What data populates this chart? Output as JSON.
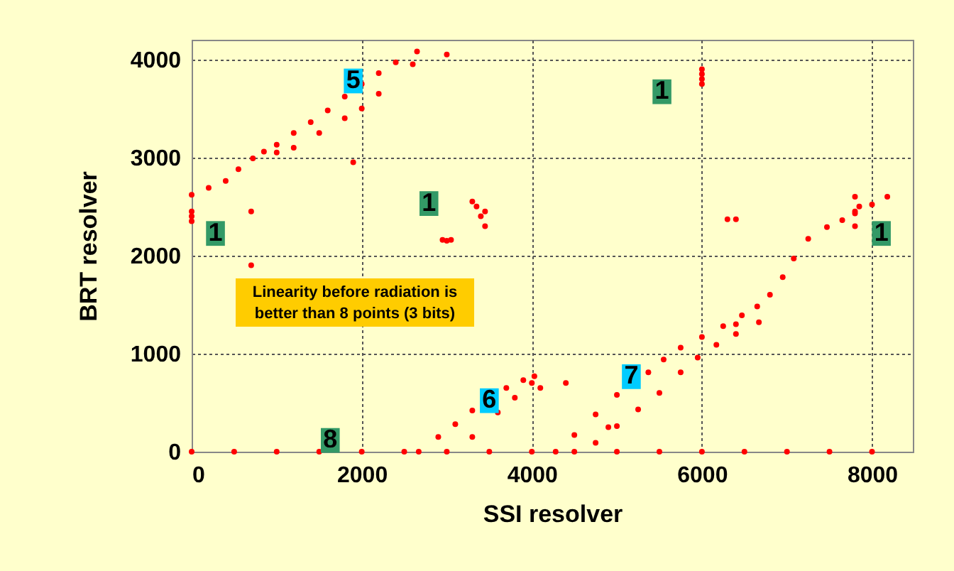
{
  "chart_data": {
    "type": "scatter",
    "xlabel": "SSI  resolver",
    "ylabel": "BRT resolver",
    "xlim": [
      0,
      8480
    ],
    "ylim": [
      0,
      4200
    ],
    "xticks": [
      0,
      {
        "value": 2000,
        "label": "2000"
      },
      {
        "value": 4000,
        "label": "4000"
      },
      {
        "value": 6000,
        "label": "6000"
      },
      {
        "value": 8000,
        "label": "8000"
      }
    ],
    "yticks": [
      0,
      {
        "value": 1000,
        "label": "1000"
      },
      {
        "value": 2000,
        "label": "2000"
      },
      {
        "value": 3000,
        "label": "3000"
      },
      {
        "value": 4000,
        "label": "4000"
      }
    ],
    "grid": true,
    "marker": "circle",
    "series": [
      {
        "color": "#ff0000",
        "x": [
          0,
          200,
          400,
          550,
          720,
          850,
          1000,
          1200,
          1400,
          1600,
          1800,
          2000,
          2200,
          2400,
          2650,
          0,
          0,
          0,
          700,
          1000,
          1200,
          1500,
          1800,
          2000,
          2200,
          2600,
          3000,
          700,
          1900,
          2950,
          3000,
          3050,
          3300,
          3350,
          3400,
          3450,
          3450,
          6000,
          6000,
          6000,
          6000,
          6300,
          6400,
          7800,
          7800,
          7800,
          7850,
          2670,
          2900,
          3100,
          3300,
          3700,
          3900,
          4030,
          3300,
          3600,
          3800,
          4000,
          4100,
          4400,
          4280,
          4500,
          4750,
          5000,
          5370,
          5550,
          5750,
          6000,
          6250,
          6470,
          6650,
          6800,
          6950,
          7080,
          7250,
          7470,
          7650,
          7800,
          8000,
          8180,
          4750,
          5000,
          5250,
          5500,
          5750,
          5950,
          6170,
          6400,
          6670,
          6400,
          4900,
          0,
          500,
          1000,
          1500,
          2000,
          2500,
          3000,
          3500,
          4000,
          4500,
          5000,
          5500,
          6000,
          6500,
          7000,
          7500,
          8000
        ],
        "values": [
          2620,
          2690,
          2760,
          2880,
          2990,
          3060,
          3130,
          3250,
          3360,
          3480,
          3620,
          3750,
          3860,
          3970,
          4080,
          2350,
          2400,
          2450,
          2450,
          3050,
          3100,
          3250,
          3400,
          3500,
          3650,
          3950,
          4050,
          1900,
          2950,
          2160,
          2150,
          2160,
          2550,
          2500,
          2400,
          2300,
          2450,
          3750,
          3800,
          3850,
          3900,
          2370,
          2370,
          2300,
          2450,
          2600,
          2500,
          0,
          150,
          280,
          420,
          650,
          730,
          770,
          150,
          400,
          550,
          700,
          650,
          700,
          0,
          170,
          380,
          580,
          810,
          940,
          1060,
          1170,
          1280,
          1390,
          1480,
          1600,
          1780,
          1970,
          2170,
          2290,
          2360,
          2430,
          2520,
          2600,
          90,
          260,
          430,
          600,
          810,
          960,
          1090,
          1200,
          1320,
          1300,
          250,
          0,
          0,
          0,
          0,
          0,
          0,
          0,
          0,
          0,
          0,
          0,
          0,
          0,
          0,
          0,
          0,
          0
        ]
      }
    ],
    "annotations": [
      {
        "text": "5",
        "x": 1900,
        "y": 3780
      },
      {
        "text": "1",
        "x": 5530,
        "y": 3670
      },
      {
        "text": "1",
        "x": 2790,
        "y": 2530
      },
      {
        "text": "1",
        "x": 280,
        "y": 2225
      },
      {
        "text": "1",
        "x": 8110,
        "y": 2225
      },
      {
        "text": "6",
        "x": 3500,
        "y": 520
      },
      {
        "text": "7",
        "x": 5170,
        "y": 765
      },
      {
        "text": "8",
        "x": 1630,
        "y": 115
      },
      "Linearity before radiation is better than 8 points (3 bits)"
    ]
  }
}
